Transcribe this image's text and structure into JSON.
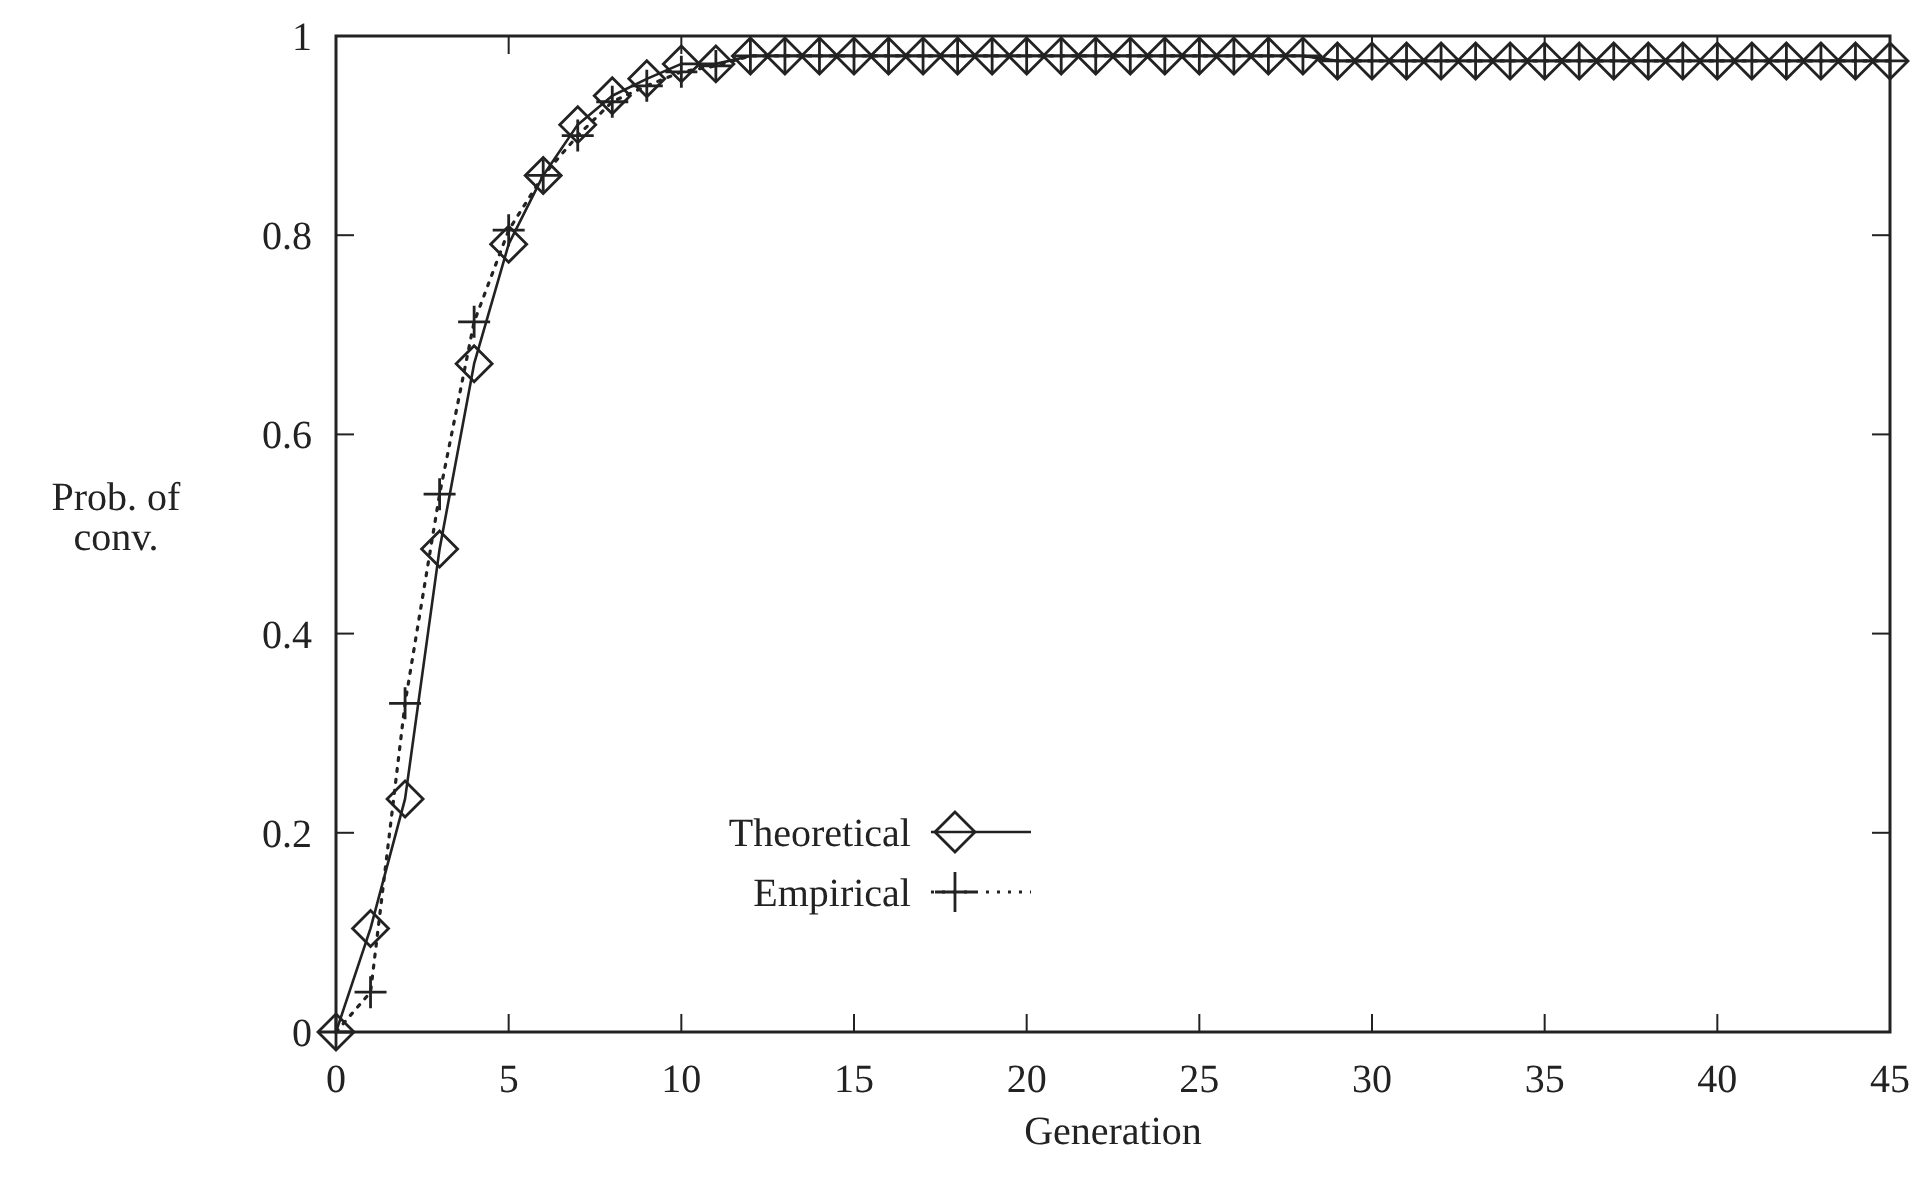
{
  "chart_data": {
    "type": "line",
    "xlabel": "Generation",
    "ylabel": "Prob. of\nconv.",
    "x": [
      0,
      1,
      2,
      3,
      4,
      5,
      6,
      7,
      8,
      9,
      10,
      11,
      12,
      13,
      14,
      15,
      16,
      17,
      18,
      19,
      20,
      21,
      22,
      23,
      24,
      25,
      26,
      27,
      28,
      29,
      30,
      31,
      32,
      33,
      34,
      35,
      36,
      37,
      38,
      39,
      40,
      41,
      42,
      43,
      44,
      45
    ],
    "series": [
      {
        "name": "Theoretical",
        "color": "#222222",
        "marker": "diamond",
        "line_style": "solid",
        "values": [
          0,
          0.104,
          0.234,
          0.485,
          0.671,
          0.791,
          0.86,
          0.911,
          0.94,
          0.957,
          0.972,
          0.972,
          0.98,
          0.98,
          0.98,
          0.98,
          0.98,
          0.98,
          0.98,
          0.98,
          0.98,
          0.98,
          0.98,
          0.98,
          0.98,
          0.98,
          0.98,
          0.98,
          0.98,
          0.975,
          0.975,
          0.975,
          0.975,
          0.975,
          0.975,
          0.975,
          0.975,
          0.975,
          0.975,
          0.975,
          0.975,
          0.975,
          0.975,
          0.975,
          0.975,
          0.975
        ]
      },
      {
        "name": "Empirical",
        "color": "#222222",
        "marker": "cross",
        "line_style": "dotted",
        "values": [
          0,
          0.04,
          0.33,
          0.54,
          0.713,
          0.805,
          0.86,
          0.9,
          0.934,
          0.95,
          0.964,
          0.97,
          0.98,
          0.98,
          0.98,
          0.98,
          0.98,
          0.98,
          0.98,
          0.98,
          0.98,
          0.98,
          0.98,
          0.98,
          0.98,
          0.98,
          0.98,
          0.98,
          0.98,
          0.975,
          0.975,
          0.975,
          0.975,
          0.975,
          0.975,
          0.975,
          0.975,
          0.975,
          0.975,
          0.975,
          0.975,
          0.975,
          0.975,
          0.975,
          0.975,
          0.975
        ]
      }
    ],
    "xlim": [
      0,
      45
    ],
    "xticks": [
      0,
      5,
      10,
      15,
      20,
      25,
      30,
      35,
      40,
      45
    ],
    "ylim": [
      0,
      1
    ],
    "yticks": [
      0,
      0.2,
      0.4,
      0.6,
      0.8,
      1
    ],
    "grid": false,
    "legend": "bottom"
  }
}
